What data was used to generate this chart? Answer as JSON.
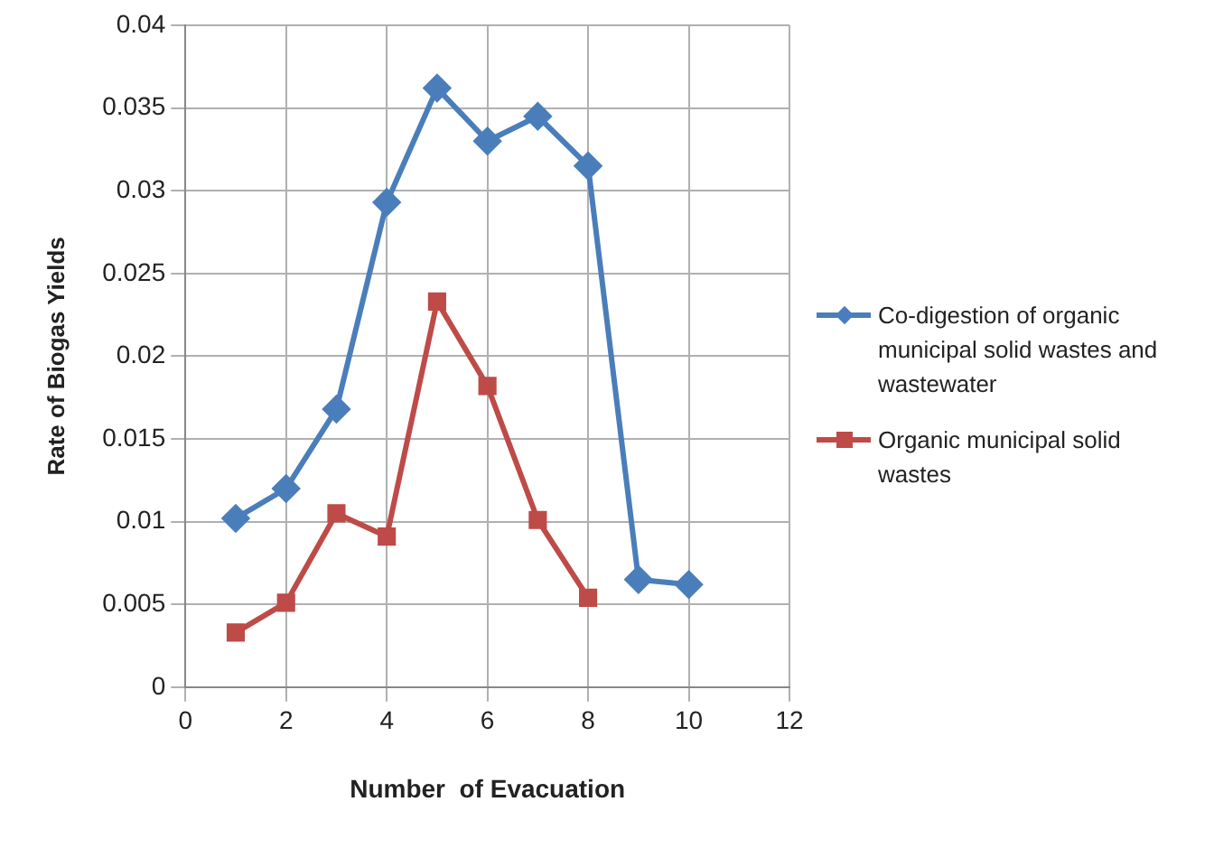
{
  "chart_data": {
    "type": "line",
    "xlabel": "Number  of Evacuation",
    "ylabel": "Rate of Biogas Yields",
    "xlim": [
      0,
      12
    ],
    "xticks": [
      0,
      2,
      4,
      6,
      8,
      10,
      12
    ],
    "ylim": [
      0,
      0.04
    ],
    "yticks": [
      0,
      0.005,
      0.01,
      0.015,
      0.02,
      0.025,
      0.03,
      0.035,
      0.04
    ],
    "grid": true,
    "legend": "right",
    "line_style": "solid",
    "series": [
      {
        "name": "Co-digestion of organic municipal solid wastes and wastewater",
        "color": "#4a7ebb",
        "marker": "diamond",
        "x": [
          1,
          2,
          3,
          4,
          5,
          6,
          7,
          8,
          9,
          10
        ],
        "values": [
          0.0102,
          0.012,
          0.0168,
          0.0293,
          0.0362,
          0.033,
          0.0345,
          0.0315,
          0.0065,
          0.0062
        ]
      },
      {
        "name": "Organic municipal solid wastes",
        "color": "#be4b48",
        "marker": "square",
        "x": [
          1,
          2,
          3,
          4,
          5,
          6,
          7,
          8
        ],
        "values": [
          0.0033,
          0.0051,
          0.0105,
          0.0091,
          0.0233,
          0.0182,
          0.0101,
          0.0054
        ]
      }
    ]
  }
}
